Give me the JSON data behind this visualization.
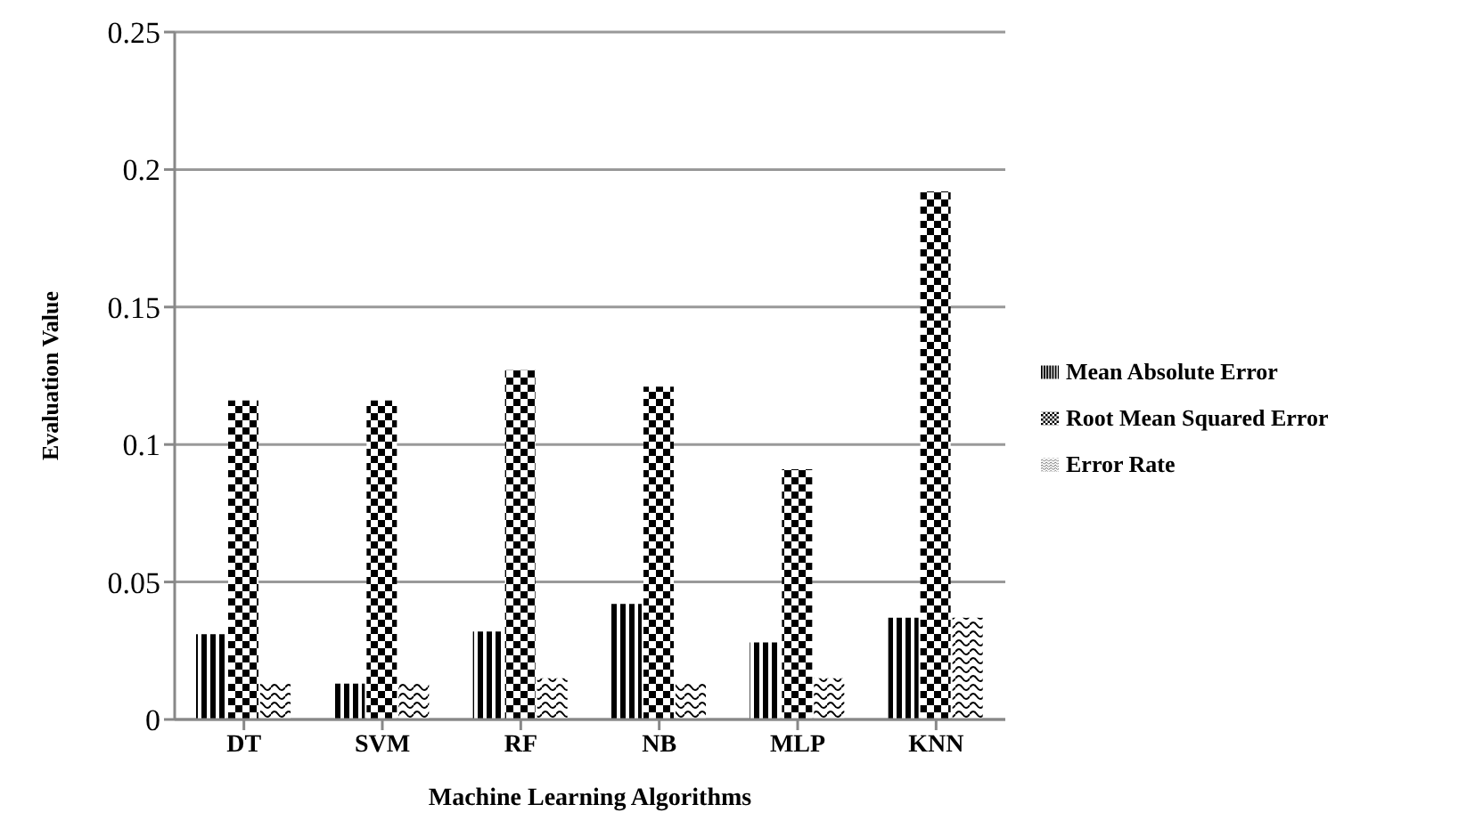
{
  "chart_data": {
    "type": "bar",
    "xlabel": "Machine Learning Algorithms",
    "ylabel": "Evaluation Value",
    "categories": [
      "DT",
      "SVM",
      "RF",
      "NB",
      "MLP",
      "KNN"
    ],
    "series": [
      {
        "name": "Mean Absolute Error",
        "color": "#000000",
        "values": [
          0.031,
          0.013,
          0.032,
          0.042,
          0.028,
          0.037
        ]
      },
      {
        "name": "Root Mean Squared Error",
        "color": "#000000",
        "values": [
          0.116,
          0.116,
          0.127,
          0.121,
          0.091,
          0.192
        ]
      },
      {
        "name": "Error Rate",
        "color": "#000000",
        "values": [
          0.013,
          0.013,
          0.015,
          0.013,
          0.015,
          0.037
        ]
      }
    ],
    "ylim": [
      0,
      0.25
    ],
    "yticks": [
      0,
      0.05,
      0.1,
      0.15,
      0.2,
      0.25
    ],
    "grid": "y",
    "legend": "right"
  }
}
